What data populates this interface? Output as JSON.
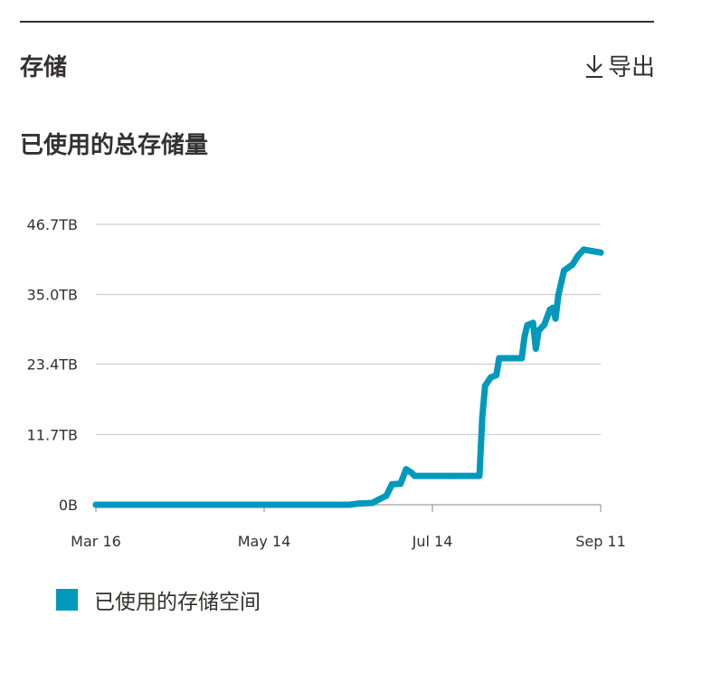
{
  "card": {
    "title": "存储",
    "export_label": "导出",
    "export_icon": "download-arrow-icon"
  },
  "chart_data": {
    "type": "area",
    "title": "已使用的总存储量",
    "xlabel": "",
    "ylabel": "",
    "x_ticks": [
      "Mar 16",
      "May 14",
      "Jul 14",
      "Sep 11"
    ],
    "y_ticks": [
      "0B",
      "11.7TB",
      "23.4TB",
      "35.0TB",
      "46.7TB"
    ],
    "ylim": [
      0,
      46.7
    ],
    "y_unit": "TB",
    "grid": true,
    "legend_position": "bottom-left",
    "series": [
      {
        "name": "已使用的存储空间",
        "color": "#0099bc",
        "points": [
          [
            "2023-03-16",
            0
          ],
          [
            "2023-06-14",
            0
          ],
          [
            "2023-06-17",
            0.2
          ],
          [
            "2023-06-22",
            0.3
          ],
          [
            "2023-06-24",
            0.8
          ],
          [
            "2023-06-27",
            1.5
          ],
          [
            "2023-06-29",
            3.4
          ],
          [
            "2023-07-02",
            3.5
          ],
          [
            "2023-07-04",
            5.9
          ],
          [
            "2023-07-06",
            5.3
          ],
          [
            "2023-07-07",
            4.8
          ],
          [
            "2023-07-19",
            4.8
          ],
          [
            "2023-07-30",
            4.8
          ],
          [
            "2023-07-31",
            14.5
          ],
          [
            "2023-08-01",
            19.8
          ],
          [
            "2023-08-03",
            21.2
          ],
          [
            "2023-08-05",
            21.6
          ],
          [
            "2023-08-06",
            24.4
          ],
          [
            "2023-08-14",
            24.4
          ],
          [
            "2023-08-15",
            28.0
          ],
          [
            "2023-08-16",
            29.9
          ],
          [
            "2023-08-18",
            30.3
          ],
          [
            "2023-08-19",
            26.0
          ],
          [
            "2023-08-20",
            29.0
          ],
          [
            "2023-08-22",
            30.0
          ],
          [
            "2023-08-24",
            32.5
          ],
          [
            "2023-08-25",
            32.8
          ],
          [
            "2023-08-26",
            31.0
          ],
          [
            "2023-08-27",
            34.9
          ],
          [
            "2023-08-29",
            39.0
          ],
          [
            "2023-09-01",
            40.0
          ],
          [
            "2023-09-03",
            41.5
          ],
          [
            "2023-09-05",
            42.5
          ],
          [
            "2023-09-11",
            42.0
          ]
        ]
      }
    ]
  }
}
